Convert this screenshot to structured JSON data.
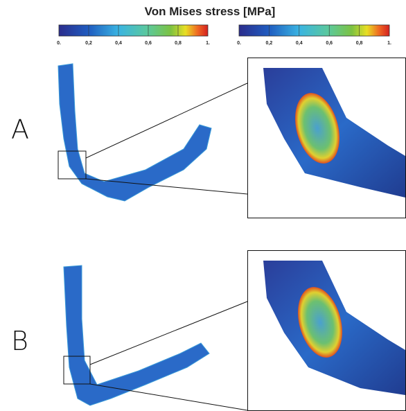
{
  "title": "Von Mises stress [MPa]",
  "colorbars": [
    {
      "ticks": [
        "0.",
        "0,2",
        "0,4",
        "0,6",
        "0,8",
        "1."
      ]
    },
    {
      "ticks": [
        "0.",
        "0,2",
        "0,4",
        "0,6",
        "0,8",
        "1."
      ]
    }
  ],
  "panels": [
    {
      "label": "A"
    },
    {
      "label": "B"
    }
  ]
}
